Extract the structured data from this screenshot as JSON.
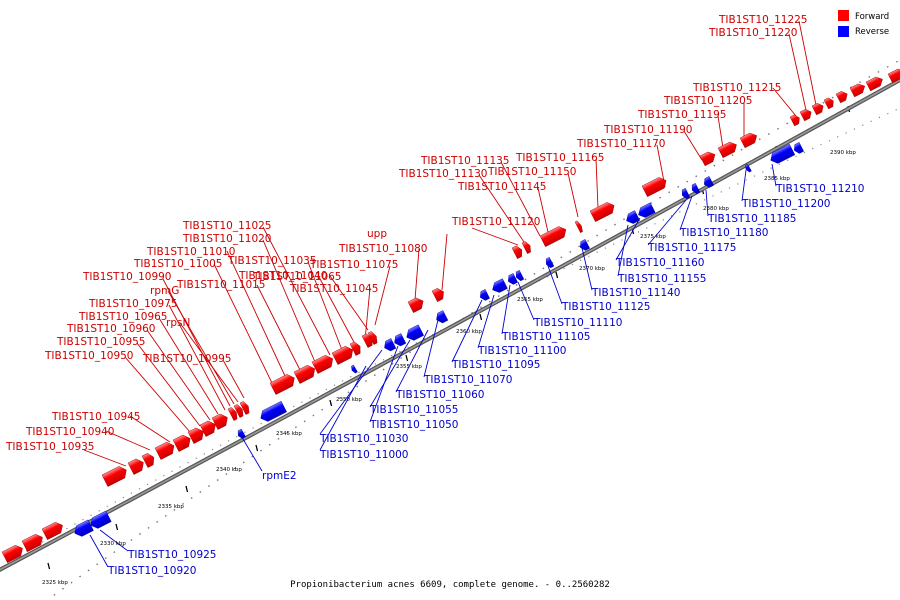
{
  "legend": {
    "forward": {
      "label": "Forward",
      "color": "#ff0000"
    },
    "reverse": {
      "label": "Reverse",
      "color": "#0000ff"
    }
  },
  "caption": "Propionibacterium acnes 6609, complete genome. - 0..2560282",
  "positions": [
    "2325 kbp",
    "2330 kbp",
    "2335 kbp",
    "2340 kbp",
    "2345 kbp",
    "2350 kbp",
    "2355 kbp",
    "2360 kbp",
    "2365 kbp",
    "2370 kbp",
    "2375 kbp",
    "2380 kbp",
    "2385 kbp",
    "2390 kbp"
  ],
  "forward_labels": [
    "TIB1ST10_10935",
    "TIB1ST10_10940",
    "TIB1ST10_10945",
    "TIB1ST10_10950",
    "TIB1ST10_10955",
    "TIB1ST10_10960",
    "TIB1ST10_10965",
    "TIB1ST10_10975",
    "TIB1ST10_10990",
    "rpmG",
    "rpsN",
    "TIB1ST10_10995",
    "TIB1ST10_11005",
    "TIB1ST10_11010",
    "TIB1ST10_11015",
    "TIB1ST10_11020",
    "TIB1ST10_11025",
    "TIB1ST10_11035",
    "TIB1ST10_11040",
    "TIB1ST10_11045",
    "TIB1ST10_11065",
    "TIB1ST10_11075",
    "TIB1ST10_11080",
    "upp",
    "TIB1ST10_11120",
    "TIB1ST10_11130",
    "TIB1ST10_11135",
    "TIB1ST10_11145",
    "TIB1ST10_11150",
    "TIB1ST10_11165",
    "TIB1ST10_11170",
    "TIB1ST10_11190",
    "TIB1ST10_11195",
    "TIB1ST10_11205",
    "TIB1ST10_11215",
    "TIB1ST10_11220",
    "TIB1ST10_11225"
  ],
  "reverse_labels": [
    "TIB1ST10_10920",
    "TIB1ST10_10925",
    "rpmE2",
    "TIB1ST10_11000",
    "TIB1ST10_11030",
    "TIB1ST10_11050",
    "TIB1ST10_11055",
    "TIB1ST10_11060",
    "TIB1ST10_11070",
    "TIB1ST10_11095",
    "TIB1ST10_11100",
    "TIB1ST10_11105",
    "TIB1ST10_11110",
    "TIB1ST10_11125",
    "TIB1ST10_11140",
    "TIB1ST10_11155",
    "TIB1ST10_11160",
    "TIB1ST10_11175",
    "TIB1ST10_11180",
    "TIB1ST10_11185",
    "TIB1ST10_11200",
    "TIB1ST10_11210"
  ]
}
